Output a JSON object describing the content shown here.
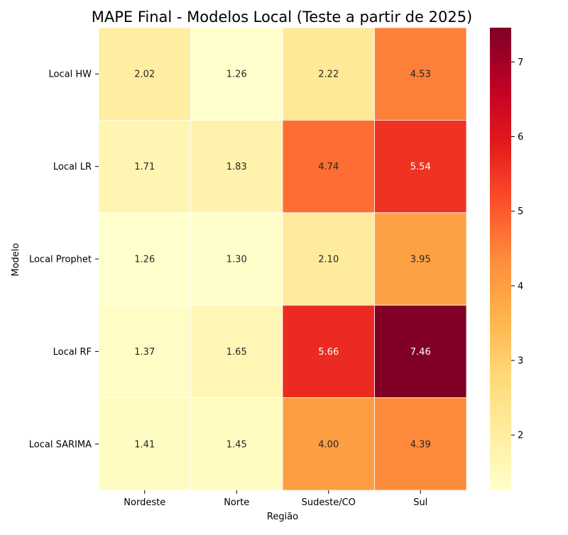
{
  "chart_data": {
    "type": "heatmap",
    "title": "MAPE Final - Modelos Local (Teste a partir de 2025)",
    "xlabel": "Região",
    "ylabel": "Modelo",
    "x_categories": [
      "Nordeste",
      "Norte",
      "Sudeste/CO",
      "Sul"
    ],
    "y_categories": [
      "Local HW",
      "Local LR",
      "Local Prophet",
      "Local RF",
      "Local SARIMA"
    ],
    "values": [
      [
        2.02,
        1.26,
        2.22,
        4.53
      ],
      [
        1.71,
        1.83,
        4.74,
        5.54
      ],
      [
        1.26,
        1.3,
        2.1,
        3.95
      ],
      [
        1.37,
        1.65,
        5.66,
        7.46
      ],
      [
        1.41,
        1.45,
        4.0,
        4.39
      ]
    ],
    "value_labels": [
      [
        "2.02",
        "1.26",
        "2.22",
        "4.53"
      ],
      [
        "1.71",
        "1.83",
        "4.74",
        "5.54"
      ],
      [
        "1.26",
        "1.30",
        "2.10",
        "3.95"
      ],
      [
        "1.37",
        "1.65",
        "5.66",
        "7.46"
      ],
      [
        "1.41",
        "1.45",
        "4.00",
        "4.39"
      ]
    ],
    "colormap": "YlOrRd",
    "vmin": 1.26,
    "vmax": 7.46,
    "colorbar_ticks": [
      2,
      3,
      4,
      5,
      6,
      7
    ],
    "grid": false,
    "legend": "colorbar-right"
  }
}
